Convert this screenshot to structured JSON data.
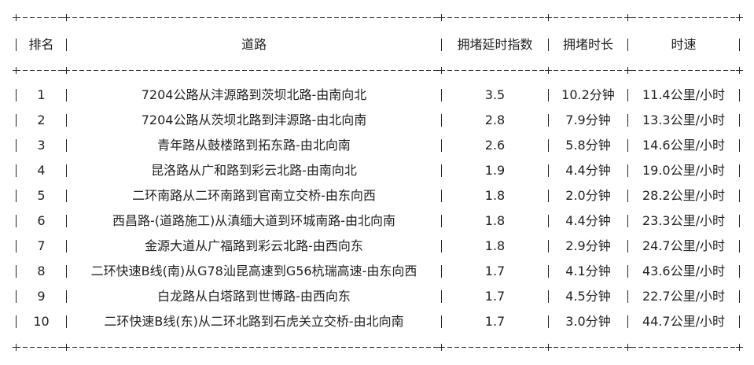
{
  "headers": [
    "排名",
    "道路",
    "拥堵延时指数",
    "拥堵时长",
    "时速"
  ],
  "rows": [
    [
      "1",
      "7204公路从沣源路到茨坝北路-由南向北",
      "3.5",
      "10.2分钟",
      "11.4公里/小时"
    ],
    [
      "2",
      "7204公路从茨坝北路到沣源路-由北向南",
      "2.8",
      "7.9分钟",
      "13.3公里/小时"
    ],
    [
      "3",
      "青年路从鼓楼路到拓东路-由北向南",
      "2.6",
      "5.8分钟",
      "14.6公里/小时"
    ],
    [
      "4",
      "昆洛路从广和路到彩云北路-由南向北",
      "1.9",
      "4.4分钟",
      "19.0公里/小时"
    ],
    [
      "5",
      "二环南路从二环南路到官南立交桥-由东向西",
      "1.8",
      "2.0分钟",
      "28.2公里/小时"
    ],
    [
      "6",
      "西昌路-(道路施工)从滇缅大道到环城南路-由北向南",
      "1.8",
      "4.4分钟",
      "23.3公里/小时"
    ],
    [
      "7",
      "金源大道从广福路到彩云北路-由西向东",
      "1.8",
      "2.9分钟",
      "24.7公里/小时"
    ],
    [
      "8",
      "二环快速B线(南)从G78汕昆高速到G56杭瑞高速-由东向西",
      "1.7",
      "4.1分钟",
      "43.6公里/小时"
    ],
    [
      "9",
      "白龙路从白塔路到世博路-由西向东",
      "1.7",
      "4.5分钟",
      "22.7公里/小时"
    ],
    [
      "10",
      "二环快速B线(东)从二环北路到石虎关立交桥-由北向南",
      "1.7",
      "3.0分钟",
      "44.7公里/小时"
    ]
  ]
}
